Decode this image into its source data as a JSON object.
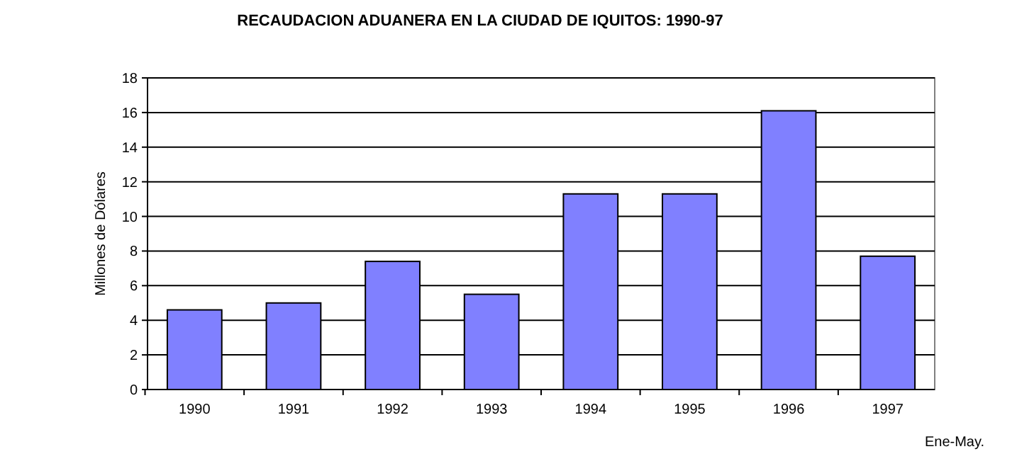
{
  "chart_data": {
    "type": "bar",
    "title": "RECAUDACION ADUANERA EN LA CIUDAD DE IQUITOS: 1990-97",
    "ylabel": "Millones de Dólares",
    "categories": [
      "1990",
      "1991",
      "1992",
      "1993",
      "1994",
      "1995",
      "1996",
      "1997"
    ],
    "values": [
      4.6,
      5.0,
      7.4,
      5.5,
      11.3,
      11.3,
      16.1,
      7.7
    ],
    "color": "#8080ff",
    "ylim": [
      0,
      18
    ],
    "yticks": [
      0,
      2,
      4,
      6,
      8,
      10,
      12,
      14,
      16,
      18
    ],
    "grid": "y",
    "annotations": [
      "Ene-May."
    ]
  }
}
